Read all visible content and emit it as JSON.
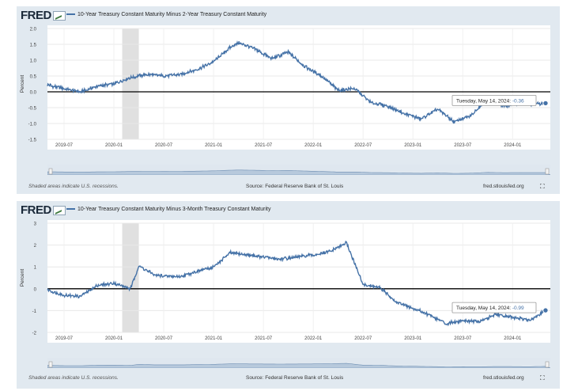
{
  "charts": [
    {
      "logo": "FRED",
      "legend": "10-Year Treasury Constant Maturity Minus 2-Year Treasury Constant Maturity",
      "note": "Shaded areas indicate U.S. recessions.",
      "source": "Source: Federal Reserve Bank of St. Louis",
      "site": "fred.stlouisfed.org",
      "ylabel": "Percent",
      "tooltip": {
        "label": "Tuesday, May 14, 2024:",
        "value": "-0.36"
      }
    },
    {
      "logo": "FRED",
      "legend": "10-Year Treasury Constant Maturity Minus 3-Month Treasury Constant Maturity",
      "note": "Shaded areas indicate U.S. recessions.",
      "source": "Source: Federal Reserve Bank of St. Louis",
      "site": "fred.stlouisfed.org",
      "ylabel": "Percent",
      "tooltip": {
        "label": "Tuesday, May 14, 2024:",
        "value": "-0.99"
      }
    }
  ],
  "chart_data": [
    {
      "type": "line",
      "series": [
        {
          "x": [
            "2019-05",
            "2019-07",
            "2019-09",
            "2019-11",
            "2020-01",
            "2020-03",
            "2020-05",
            "2020-07",
            "2020-09",
            "2020-11",
            "2021-01",
            "2021-03",
            "2021-04",
            "2021-06",
            "2021-08",
            "2021-10",
            "2021-12",
            "2022-02",
            "2022-04",
            "2022-06",
            "2022-08",
            "2022-10",
            "2022-12",
            "2023-02",
            "2023-04",
            "2023-06",
            "2023-08",
            "2023-10",
            "2023-12",
            "2024-02",
            "2024-03",
            "2024-05-14"
          ],
          "values": [
            0.22,
            0.1,
            0.0,
            0.18,
            0.25,
            0.45,
            0.55,
            0.5,
            0.55,
            0.7,
            0.95,
            1.4,
            1.55,
            1.35,
            1.05,
            1.25,
            0.8,
            0.5,
            0.05,
            0.1,
            -0.35,
            -0.45,
            -0.7,
            -0.85,
            -0.55,
            -0.95,
            -0.75,
            -0.2,
            -0.45,
            -0.35,
            -0.4,
            -0.36
          ]
        }
      ],
      "ylim": [
        -1.5,
        2.0
      ],
      "yticks": [
        "2.0",
        "1.5",
        "1.0",
        "0.5",
        "0.0",
        "-0.5",
        "-1.0",
        "-1.5"
      ],
      "xticks": [
        "2019-07",
        "2020-01",
        "2020-07",
        "2021-01",
        "2021-07",
        "2022-01",
        "2022-07",
        "2023-01",
        "2023-07",
        "2024-01"
      ],
      "recession": [
        "2020-02",
        "2020-04"
      ],
      "grid": true
    },
    {
      "type": "line",
      "series": [
        {
          "x": [
            "2019-05",
            "2019-07",
            "2019-09",
            "2019-11",
            "2020-01",
            "2020-03",
            "2020-04",
            "2020-06",
            "2020-09",
            "2020-11",
            "2021-01",
            "2021-03",
            "2021-06",
            "2021-09",
            "2021-11",
            "2022-01",
            "2022-03",
            "2022-05",
            "2022-07",
            "2022-09",
            "2022-11",
            "2023-01",
            "2023-03",
            "2023-05",
            "2023-07",
            "2023-09",
            "2023-11",
            "2024-01",
            "2024-03",
            "2024-05-14"
          ],
          "values": [
            -0.05,
            -0.3,
            -0.35,
            0.15,
            0.25,
            0.0,
            1.05,
            0.6,
            0.55,
            0.8,
            1.0,
            1.65,
            1.5,
            1.35,
            1.45,
            1.55,
            1.7,
            2.1,
            0.2,
            0.05,
            -0.6,
            -0.9,
            -1.2,
            -1.6,
            -1.45,
            -1.5,
            -1.2,
            -1.3,
            -1.45,
            -0.99
          ]
        }
      ],
      "ylim": [
        -2,
        3
      ],
      "yticks": [
        "3",
        "2",
        "1",
        "0",
        "-1",
        "-2"
      ],
      "xticks": [
        "2019-07",
        "2020-01",
        "2020-07",
        "2021-01",
        "2021-07",
        "2022-01",
        "2022-07",
        "2023-01",
        "2023-07",
        "2024-01"
      ],
      "recession": [
        "2020-02",
        "2020-04"
      ],
      "grid": true
    }
  ]
}
